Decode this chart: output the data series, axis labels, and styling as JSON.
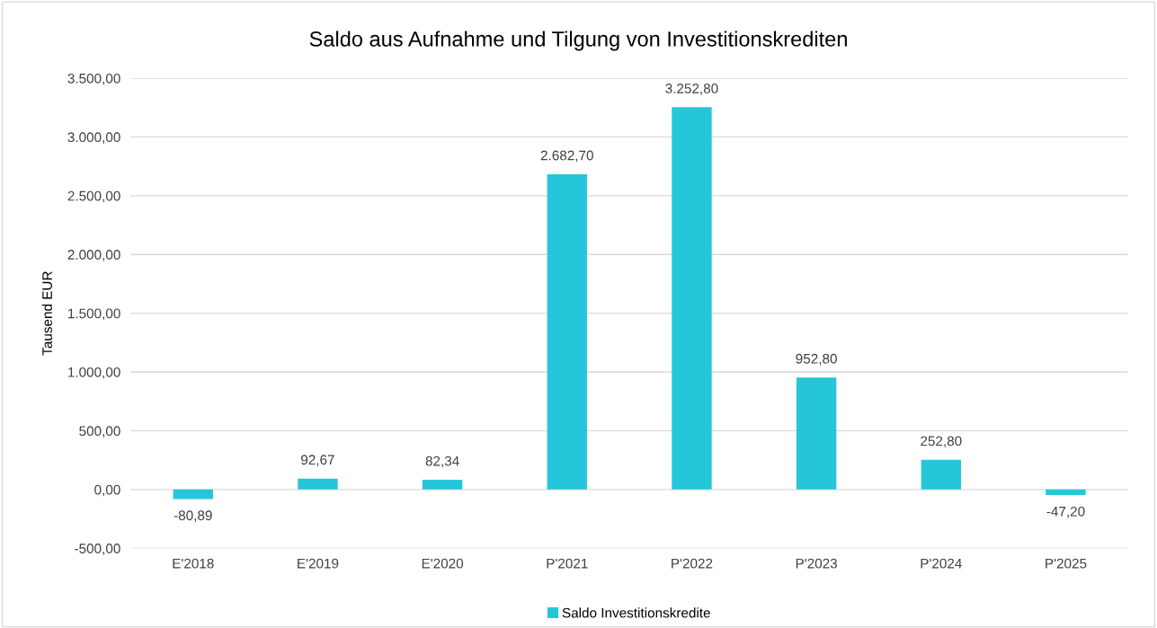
{
  "chart_data": {
    "type": "bar",
    "title": "Saldo aus Aufnahme und Tilgung von Investitionskrediten",
    "ylabel": "Tausend EUR",
    "categories": [
      "E'2018",
      "E'2019",
      "E'2020",
      "P'2021",
      "P'2022",
      "P'2023",
      "P'2024",
      "P'2025"
    ],
    "series": [
      {
        "name": "Saldo Investitionskredite",
        "color": "#26c6da",
        "values": [
          -80.89,
          92.67,
          82.34,
          2682.7,
          3252.8,
          952.8,
          252.8,
          -47.2
        ],
        "value_labels": [
          "-80,89",
          "92,67",
          "82,34",
          "2.682,70",
          "3.252,80",
          "952,80",
          "252,80",
          "-47,20"
        ]
      }
    ],
    "ylim": [
      -500,
      3500
    ],
    "yticks": [
      {
        "value": -500,
        "label": "-500,00"
      },
      {
        "value": 0,
        "label": "0,00"
      },
      {
        "value": 500,
        "label": "500,00"
      },
      {
        "value": 1000,
        "label": "1.000,00"
      },
      {
        "value": 1500,
        "label": "1.500,00"
      },
      {
        "value": 2000,
        "label": "2.000,00"
      },
      {
        "value": 2500,
        "label": "2.500,00"
      },
      {
        "value": 3000,
        "label": "3.000,00"
      },
      {
        "value": 3500,
        "label": "3.500,00"
      }
    ],
    "grid": "y",
    "legend": "bottom"
  }
}
